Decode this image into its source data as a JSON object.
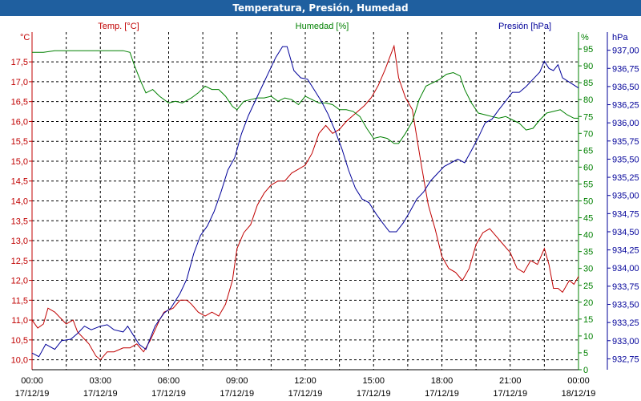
{
  "title": "Temperatura, Presión, Humedad",
  "chart_data": {
    "type": "line",
    "title": "Temperatura, Presión, Humedad",
    "x_label_times": [
      "00:00",
      "03:00",
      "06:00",
      "09:00",
      "12:00",
      "15:00",
      "18:00",
      "21:00",
      "00:00"
    ],
    "x_label_dates": [
      "17/12/19",
      "17/12/19",
      "17/12/19",
      "17/12/19",
      "17/12/19",
      "17/12/19",
      "17/12/19",
      "17/12/19",
      "18/12/19"
    ],
    "xlim_hours": [
      0,
      24
    ],
    "grid": true,
    "axes": {
      "temp": {
        "label": "Temp. [°C]",
        "unit": "°C",
        "color": "#c00000",
        "ylim": [
          9.75,
          18.25
        ],
        "ticks": [
          "10,0",
          "10,5",
          "11,0",
          "11,5",
          "12,0",
          "12,5",
          "13,0",
          "13,5",
          "14,0",
          "14,5",
          "15,0",
          "15,5",
          "16,0",
          "16,5",
          "17,0",
          "17,5"
        ],
        "tick_values": [
          10.0,
          10.5,
          11.0,
          11.5,
          12.0,
          12.5,
          13.0,
          13.5,
          14.0,
          14.5,
          15.0,
          15.5,
          16.0,
          16.5,
          17.0,
          17.5
        ]
      },
      "hum": {
        "label": "Humedad [%]",
        "unit": "%",
        "color": "#008000",
        "ylim": [
          0,
          100
        ],
        "ticks": [
          "0",
          "5",
          "10",
          "15",
          "20",
          "25",
          "30",
          "35",
          "40",
          "45",
          "50",
          "55",
          "60",
          "65",
          "70",
          "75",
          "80",
          "85",
          "90",
          "95"
        ],
        "tick_values": [
          0,
          5,
          10,
          15,
          20,
          25,
          30,
          35,
          40,
          45,
          50,
          55,
          60,
          65,
          70,
          75,
          80,
          85,
          90,
          95
        ]
      },
      "pres": {
        "label": "Presión [hPa]",
        "unit": "hPa",
        "color": "#000099",
        "ylim": [
          932.6,
          937.25
        ],
        "ticks": [
          "932,75",
          "933,00",
          "933,25",
          "933,50",
          "933,75",
          "934,00",
          "934,25",
          "934,50",
          "934,75",
          "935,00",
          "935,25",
          "935,50",
          "935,75",
          "936,00",
          "936,25",
          "936,50",
          "936,75",
          "937,00"
        ],
        "tick_values": [
          932.75,
          933.0,
          933.25,
          933.5,
          933.75,
          934.0,
          934.25,
          934.5,
          934.75,
          935.0,
          935.25,
          935.5,
          935.75,
          936.0,
          936.25,
          936.5,
          936.75,
          937.0
        ]
      }
    },
    "series": [
      {
        "name": "Temp. [°C]",
        "axis": "temp",
        "color": "#c00000",
        "points": [
          [
            0,
            11.0
          ],
          [
            0.25,
            10.8
          ],
          [
            0.5,
            10.9
          ],
          [
            0.7,
            11.3
          ],
          [
            1.0,
            11.2
          ],
          [
            1.5,
            10.9
          ],
          [
            1.8,
            11.0
          ],
          [
            2.0,
            10.7
          ],
          [
            2.5,
            10.4
          ],
          [
            2.8,
            10.1
          ],
          [
            3.0,
            10.0
          ],
          [
            3.3,
            10.2
          ],
          [
            3.6,
            10.2
          ],
          [
            4.0,
            10.3
          ],
          [
            4.3,
            10.3
          ],
          [
            4.6,
            10.4
          ],
          [
            4.9,
            10.2
          ],
          [
            5.2,
            10.5
          ],
          [
            5.6,
            11.0
          ],
          [
            5.8,
            11.2
          ],
          [
            6.2,
            11.3
          ],
          [
            6.5,
            11.5
          ],
          [
            6.8,
            11.5
          ],
          [
            7.0,
            11.4
          ],
          [
            7.3,
            11.2
          ],
          [
            7.6,
            11.1
          ],
          [
            7.9,
            11.2
          ],
          [
            8.2,
            11.1
          ],
          [
            8.5,
            11.4
          ],
          [
            8.8,
            12.0
          ],
          [
            9.0,
            12.8
          ],
          [
            9.3,
            13.2
          ],
          [
            9.6,
            13.4
          ],
          [
            9.9,
            13.9
          ],
          [
            10.2,
            14.2
          ],
          [
            10.5,
            14.4
          ],
          [
            10.8,
            14.5
          ],
          [
            11.1,
            14.5
          ],
          [
            11.4,
            14.7
          ],
          [
            11.7,
            14.8
          ],
          [
            12.0,
            14.9
          ],
          [
            12.3,
            15.2
          ],
          [
            12.6,
            15.7
          ],
          [
            12.9,
            15.9
          ],
          [
            13.2,
            15.7
          ],
          [
            13.5,
            15.8
          ],
          [
            13.8,
            16.0
          ],
          [
            14.2,
            16.2
          ],
          [
            14.6,
            16.4
          ],
          [
            14.9,
            16.6
          ],
          [
            15.2,
            16.9
          ],
          [
            15.5,
            17.3
          ],
          [
            15.7,
            17.6
          ],
          [
            15.9,
            17.9
          ],
          [
            16.1,
            17.1
          ],
          [
            16.4,
            16.6
          ],
          [
            16.7,
            16.3
          ],
          [
            16.9,
            15.6
          ],
          [
            17.1,
            14.9
          ],
          [
            17.4,
            13.9
          ],
          [
            17.7,
            13.3
          ],
          [
            18.0,
            12.6
          ],
          [
            18.3,
            12.3
          ],
          [
            18.6,
            12.2
          ],
          [
            18.9,
            12.0
          ],
          [
            19.2,
            12.3
          ],
          [
            19.5,
            12.9
          ],
          [
            19.8,
            13.2
          ],
          [
            20.1,
            13.3
          ],
          [
            20.4,
            13.1
          ],
          [
            20.7,
            12.9
          ],
          [
            21.0,
            12.7
          ],
          [
            21.3,
            12.3
          ],
          [
            21.6,
            12.2
          ],
          [
            21.9,
            12.5
          ],
          [
            22.2,
            12.4
          ],
          [
            22.5,
            12.8
          ],
          [
            22.7,
            12.4
          ],
          [
            22.9,
            11.8
          ],
          [
            23.1,
            11.8
          ],
          [
            23.3,
            11.7
          ],
          [
            23.6,
            12.0
          ],
          [
            23.8,
            11.9
          ],
          [
            24.0,
            12.1
          ]
        ]
      },
      {
        "name": "Humedad [%]",
        "axis": "hum",
        "color": "#008000",
        "points": [
          [
            0,
            94
          ],
          [
            0.5,
            94
          ],
          [
            1.0,
            94.5
          ],
          [
            1.5,
            94.5
          ],
          [
            2.0,
            94.5
          ],
          [
            2.5,
            94.5
          ],
          [
            3.0,
            94.5
          ],
          [
            3.5,
            94.5
          ],
          [
            4.0,
            94.5
          ],
          [
            4.3,
            94
          ],
          [
            4.5,
            90
          ],
          [
            4.8,
            85
          ],
          [
            5.0,
            82
          ],
          [
            5.3,
            83
          ],
          [
            5.6,
            81
          ],
          [
            6.0,
            79
          ],
          [
            6.3,
            79.5
          ],
          [
            6.6,
            79
          ],
          [
            7.0,
            80.5
          ],
          [
            7.3,
            82
          ],
          [
            7.6,
            84
          ],
          [
            7.9,
            83
          ],
          [
            8.2,
            83
          ],
          [
            8.5,
            81
          ],
          [
            8.8,
            78
          ],
          [
            9.0,
            77
          ],
          [
            9.3,
            79.5
          ],
          [
            9.6,
            80
          ],
          [
            9.9,
            80.5
          ],
          [
            10.2,
            80.5
          ],
          [
            10.5,
            81
          ],
          [
            10.8,
            79.5
          ],
          [
            11.1,
            80.5
          ],
          [
            11.4,
            80
          ],
          [
            11.7,
            78.5
          ],
          [
            12.0,
            81
          ],
          [
            12.3,
            80
          ],
          [
            12.6,
            79
          ],
          [
            12.9,
            79
          ],
          [
            13.2,
            78.5
          ],
          [
            13.5,
            77
          ],
          [
            13.8,
            77
          ],
          [
            14.1,
            76.5
          ],
          [
            14.4,
            75
          ],
          [
            14.7,
            71.5
          ],
          [
            15.0,
            68.5
          ],
          [
            15.3,
            69
          ],
          [
            15.6,
            68.5
          ],
          [
            15.9,
            67
          ],
          [
            16.1,
            67
          ],
          [
            16.4,
            70
          ],
          [
            16.7,
            73.5
          ],
          [
            17.0,
            80
          ],
          [
            17.3,
            84
          ],
          [
            17.6,
            85
          ],
          [
            17.9,
            86
          ],
          [
            18.2,
            87.5
          ],
          [
            18.5,
            88
          ],
          [
            18.8,
            87
          ],
          [
            19.0,
            83
          ],
          [
            19.3,
            79
          ],
          [
            19.6,
            76
          ],
          [
            19.9,
            75.5
          ],
          [
            20.2,
            75
          ],
          [
            20.5,
            74.5
          ],
          [
            20.8,
            75
          ],
          [
            21.1,
            74
          ],
          [
            21.4,
            73
          ],
          [
            21.7,
            71
          ],
          [
            22.0,
            71.5
          ],
          [
            22.3,
            74
          ],
          [
            22.6,
            76
          ],
          [
            22.9,
            76.5
          ],
          [
            23.2,
            77
          ],
          [
            23.5,
            75.5
          ],
          [
            23.8,
            74.5
          ],
          [
            24.0,
            74.5
          ]
        ]
      },
      {
        "name": "Presión [hPa]",
        "axis": "pres",
        "color": "#000099",
        "points": [
          [
            0,
            932.83
          ],
          [
            0.3,
            932.78
          ],
          [
            0.6,
            932.95
          ],
          [
            1.0,
            932.88
          ],
          [
            1.3,
            933.0
          ],
          [
            1.7,
            933.02
          ],
          [
            2.0,
            933.1
          ],
          [
            2.3,
            933.2
          ],
          [
            2.6,
            933.15
          ],
          [
            3.0,
            933.2
          ],
          [
            3.3,
            933.22
          ],
          [
            3.6,
            933.15
          ],
          [
            4.0,
            933.12
          ],
          [
            4.2,
            933.2
          ],
          [
            4.4,
            933.1
          ],
          [
            4.7,
            932.95
          ],
          [
            5.0,
            932.88
          ],
          [
            5.4,
            933.2
          ],
          [
            5.8,
            933.38
          ],
          [
            6.1,
            933.45
          ],
          [
            6.5,
            933.65
          ],
          [
            6.8,
            933.85
          ],
          [
            7.1,
            934.2
          ],
          [
            7.4,
            934.45
          ],
          [
            7.7,
            934.58
          ],
          [
            8.0,
            934.78
          ],
          [
            8.3,
            935.05
          ],
          [
            8.6,
            935.35
          ],
          [
            8.9,
            935.52
          ],
          [
            9.2,
            935.85
          ],
          [
            9.5,
            936.1
          ],
          [
            9.8,
            936.3
          ],
          [
            10.1,
            936.5
          ],
          [
            10.4,
            936.7
          ],
          [
            10.7,
            936.9
          ],
          [
            11.0,
            937.05
          ],
          [
            11.2,
            937.05
          ],
          [
            11.5,
            936.72
          ],
          [
            11.8,
            936.62
          ],
          [
            12.1,
            936.6
          ],
          [
            12.4,
            936.45
          ],
          [
            12.7,
            936.3
          ],
          [
            13.0,
            936.12
          ],
          [
            13.3,
            935.9
          ],
          [
            13.6,
            935.65
          ],
          [
            13.9,
            935.35
          ],
          [
            14.2,
            935.1
          ],
          [
            14.5,
            934.95
          ],
          [
            14.8,
            934.9
          ],
          [
            15.1,
            934.75
          ],
          [
            15.4,
            934.62
          ],
          [
            15.7,
            934.5
          ],
          [
            16.0,
            934.5
          ],
          [
            16.3,
            934.62
          ],
          [
            16.6,
            934.78
          ],
          [
            16.9,
            934.95
          ],
          [
            17.2,
            935.05
          ],
          [
            17.5,
            935.2
          ],
          [
            17.8,
            935.3
          ],
          [
            18.1,
            935.4
          ],
          [
            18.4,
            935.45
          ],
          [
            18.7,
            935.5
          ],
          [
            19.0,
            935.45
          ],
          [
            19.3,
            935.62
          ],
          [
            19.6,
            935.8
          ],
          [
            19.9,
            936.0
          ],
          [
            20.2,
            936.05
          ],
          [
            20.5,
            936.18
          ],
          [
            20.8,
            936.3
          ],
          [
            21.1,
            936.42
          ],
          [
            21.4,
            936.42
          ],
          [
            21.7,
            936.5
          ],
          [
            22.0,
            936.6
          ],
          [
            22.3,
            936.7
          ],
          [
            22.5,
            936.85
          ],
          [
            22.7,
            936.75
          ],
          [
            22.9,
            936.72
          ],
          [
            23.1,
            936.8
          ],
          [
            23.3,
            936.62
          ],
          [
            23.5,
            936.58
          ],
          [
            23.8,
            936.52
          ],
          [
            24.0,
            936.48
          ]
        ]
      }
    ]
  }
}
